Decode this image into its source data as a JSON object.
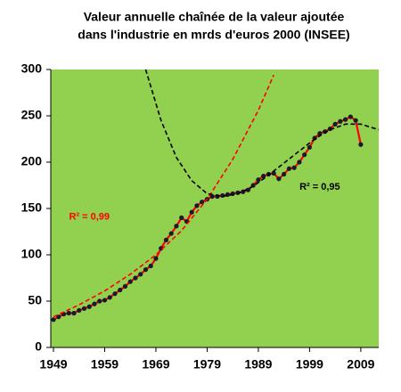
{
  "chart_data": {
    "type": "line",
    "title": [
      "Valeur annuelle chaînée de la valeur ajoutée",
      "dans l'industrie en mrds d'euros 2000 (INSEE)"
    ],
    "xlim": [
      1949,
      2012.5
    ],
    "ylim": [
      0,
      300
    ],
    "xticks": [
      1949,
      1959,
      1969,
      1979,
      1989,
      1999,
      2009
    ],
    "yticks": [
      0,
      50,
      100,
      150,
      200,
      250,
      300
    ],
    "background": "#92d050",
    "grid": false,
    "series": [
      {
        "color": "#ff0000",
        "marker_color": "#1a1a2e",
        "dashed": false,
        "x": [
          1949,
          1950,
          1951,
          1952,
          1953,
          1954,
          1955,
          1956,
          1957,
          1958,
          1959,
          1960,
          1961,
          1962,
          1963,
          1964,
          1965,
          1966,
          1967,
          1968,
          1969,
          1970,
          1971,
          1972,
          1973,
          1974,
          1975,
          1976,
          1977,
          1978,
          1979,
          1980,
          1981,
          1982,
          1983,
          1984,
          1985,
          1986,
          1987,
          1988,
          1989,
          1990,
          1991,
          1992,
          1993,
          1994,
          1995,
          1996,
          1997,
          1998,
          1999,
          2000,
          2001,
          2002,
          2003,
          2004,
          2005,
          2006,
          2007,
          2008,
          2009
        ],
        "values": [
          30,
          33,
          36,
          37,
          37,
          40,
          42,
          44,
          47,
          50,
          51,
          54,
          58,
          62,
          66,
          71,
          75,
          79,
          84,
          88,
          96,
          107,
          116,
          123,
          131,
          140,
          136,
          146,
          153,
          157,
          160,
          163,
          163,
          164,
          165,
          166,
          167,
          168,
          170,
          175,
          181,
          185,
          187,
          188,
          182,
          187,
          193,
          194,
          200,
          208,
          216,
          226,
          231,
          233,
          236,
          241,
          244,
          246,
          249,
          245,
          219
        ]
      },
      {
        "color": "#ff0000",
        "dashed": true,
        "x": [
          1949,
          1954,
          1959,
          1964,
          1969,
          1974,
          1979,
          1984,
          1989,
          1992
        ],
        "values": [
          33,
          46,
          61,
          79,
          100,
          126,
          160,
          203,
          256,
          294
        ]
      },
      {
        "color": "#000000",
        "dashed": true,
        "x": [
          1967,
          1970,
          1973,
          1976,
          1979,
          1982,
          1985,
          1988,
          1991,
          1994,
          1997,
          2000,
          2003,
          2006,
          2009,
          2012.5
        ],
        "values": [
          300,
          245,
          205,
          180,
          166,
          163,
          166,
          174,
          186,
          199,
          212,
          225,
          235,
          241,
          241,
          235
        ]
      }
    ],
    "annotations": [
      {
        "text": "R² = 0,99",
        "x": 1956,
        "y": 141,
        "color": "#ff0000"
      },
      {
        "text": "R² = 0,95",
        "x": 2001,
        "y": 173,
        "color": "#000000"
      }
    ]
  }
}
